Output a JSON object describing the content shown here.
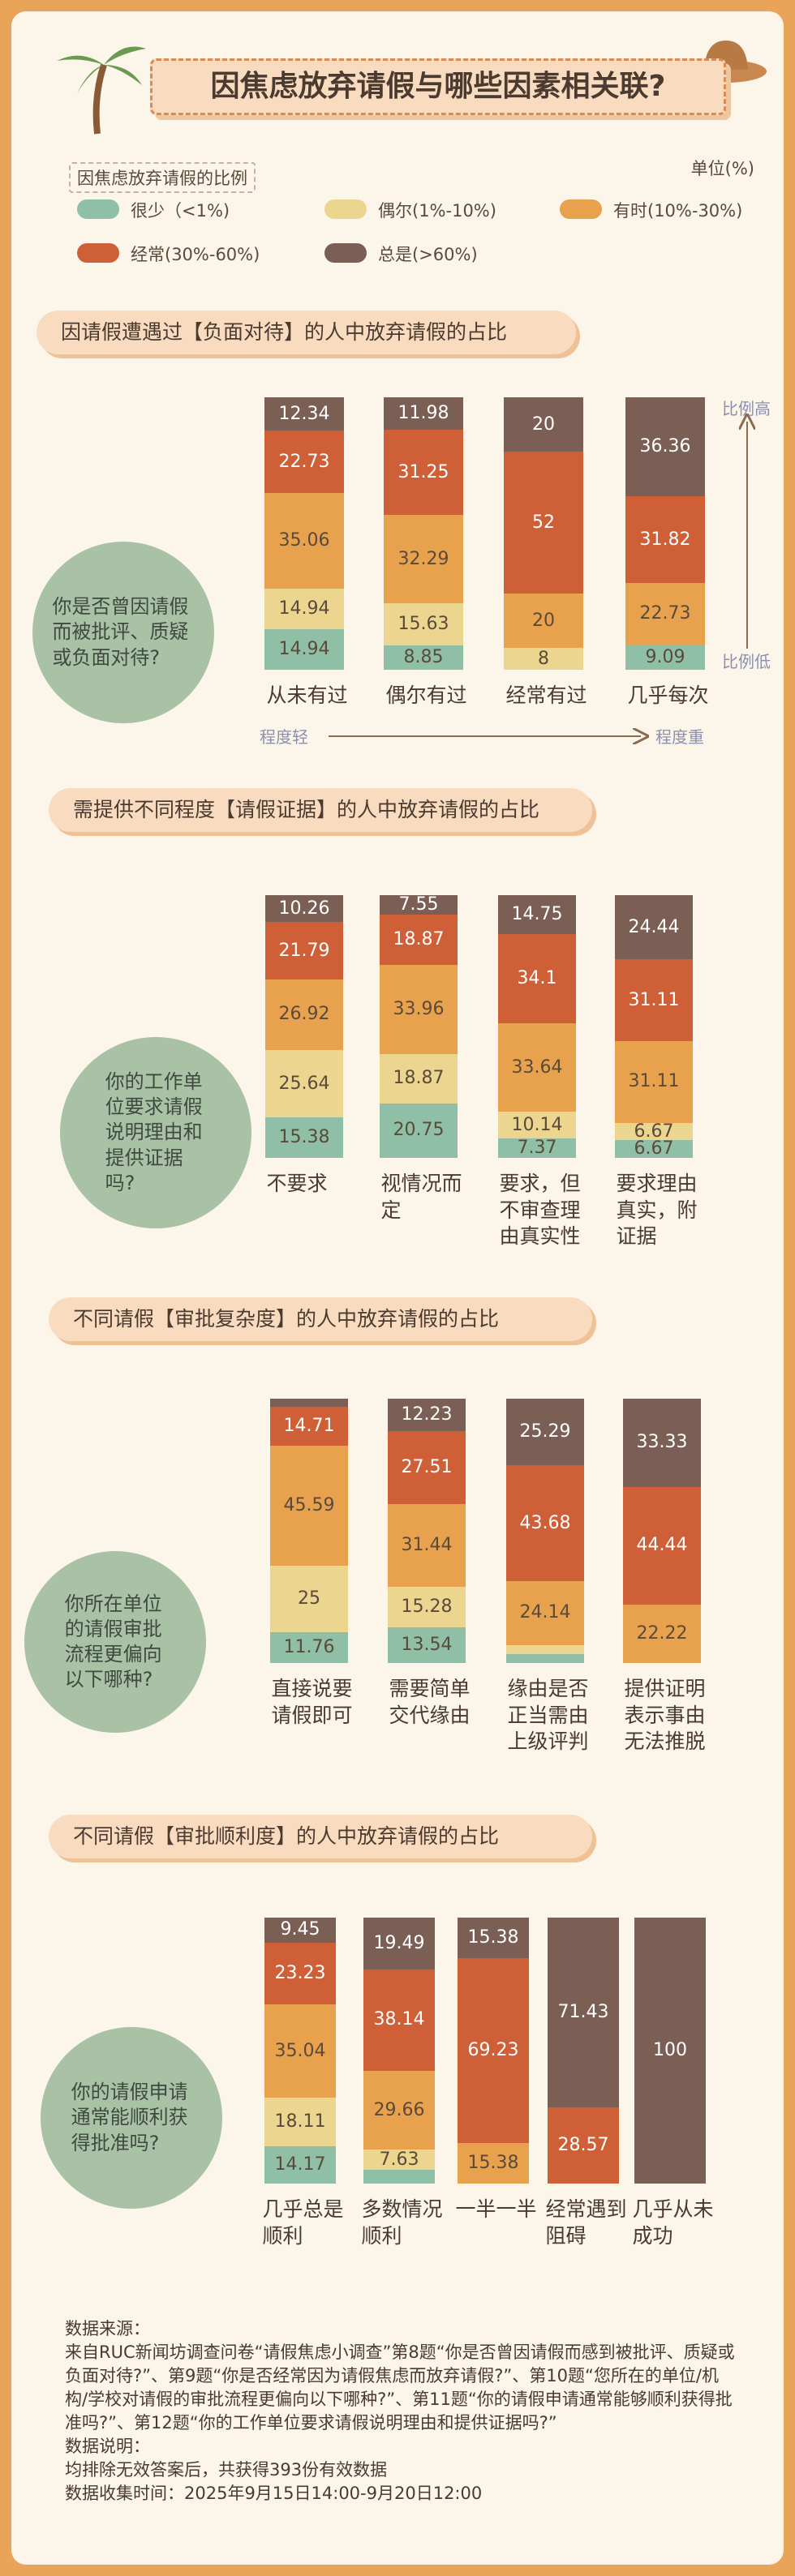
{
  "header": {
    "title": "因焦虑放弃请假与哪些因素相关联?"
  },
  "legend": {
    "title": "因焦虑放弃请假的比例",
    "unit": "单位(%)"
  },
  "chart_data": [
    {
      "type": "bar",
      "stacked": true,
      "title": "因请假遭遇过【负面对待】的人中放弃请假的占比",
      "question": "你是否曾因请假而被批评、质疑或负面对待?",
      "annotations": {
        "y_high": "比例高",
        "y_low": "比例低",
        "x_low": "程度轻",
        "x_high": "程度重"
      },
      "categories": [
        "从未有过",
        "偶尔有过",
        "经常有过",
        "几乎每次"
      ],
      "series": [
        {
          "name": "很少（<1%)",
          "color": "#8fbfa6",
          "values": [
            14.94,
            8.85,
            0,
            9.09
          ]
        },
        {
          "name": "偶尔(1%-10%)",
          "color": "#ecd58f",
          "values": [
            14.94,
            15.63,
            8,
            0
          ]
        },
        {
          "name": "有时(10%-30%)",
          "color": "#e8a24e",
          "values": [
            35.06,
            32.29,
            20,
            22.73
          ]
        },
        {
          "name": "经常(30%-60%)",
          "color": "#cf5f37",
          "values": [
            22.73,
            31.25,
            52,
            31.82
          ]
        },
        {
          "name": "总是(>60%)",
          "color": "#7b5f55",
          "values": [
            12.34,
            11.98,
            20,
            36.36
          ]
        }
      ]
    },
    {
      "type": "bar",
      "stacked": true,
      "title": "需提供不同程度【请假证据】的人中放弃请假的占比",
      "question": "你的工作单位要求请假说明理由和提供证据吗?",
      "categories": [
        "不要求",
        "视情况而定",
        "要求，但不审查理由真实性",
        "要求理由真实，附证据"
      ],
      "series": [
        {
          "name": "很少（<1%)",
          "color": "#8fbfa6",
          "values": [
            15.38,
            20.75,
            7.37,
            6.67
          ]
        },
        {
          "name": "偶尔(1%-10%)",
          "color": "#ecd58f",
          "values": [
            25.64,
            18.87,
            10.14,
            6.67
          ]
        },
        {
          "name": "有时(10%-30%)",
          "color": "#e8a24e",
          "values": [
            26.92,
            33.96,
            33.64,
            31.11
          ]
        },
        {
          "name": "经常(30%-60%)",
          "color": "#cf5f37",
          "values": [
            21.79,
            18.87,
            34.1,
            31.11
          ]
        },
        {
          "name": "总是(>60%)",
          "color": "#7b5f55",
          "values": [
            10.26,
            7.55,
            14.75,
            24.44
          ]
        }
      ]
    },
    {
      "type": "bar",
      "stacked": true,
      "title": "不同请假【审批复杂度】的人中放弃请假的占比",
      "question": "你所在单位的请假审批流程更偏向以下哪种?",
      "categories": [
        "直接说要请假即可",
        "需要简单交代缘由",
        "缘由是否正当需由上级评判",
        "提供证明表示事由无法推脱"
      ],
      "series": [
        {
          "name": "很少（<1%)",
          "color": "#8fbfa6",
          "values": [
            11.76,
            13.54,
            3.44,
            0
          ]
        },
        {
          "name": "偶尔(1%-10%)",
          "color": "#ecd58f",
          "values": [
            25,
            15.28,
            3.45,
            0
          ]
        },
        {
          "name": "有时(10%-30%)",
          "color": "#e8a24e",
          "values": [
            45.59,
            31.44,
            24.14,
            22.22
          ]
        },
        {
          "name": "经常(30%-60%)",
          "color": "#cf5f37",
          "values": [
            14.71,
            27.51,
            43.68,
            44.44
          ]
        },
        {
          "name": "总是(>60%)",
          "color": "#7b5f55",
          "values": [
            2.94,
            12.23,
            25.29,
            33.33
          ]
        }
      ]
    },
    {
      "type": "bar",
      "stacked": true,
      "title": "不同请假【审批顺利度】的人中放弃请假的占比",
      "question": "你的请假申请通常能顺利获得批准吗?",
      "categories": [
        "几乎总是顺利",
        "多数情况顺利",
        "一半一半",
        "经常遇到阻碍",
        "几乎从未成功"
      ],
      "series": [
        {
          "name": "很少（<1%)",
          "color": "#8fbfa6",
          "values": [
            14.17,
            5.08,
            0,
            0,
            0
          ]
        },
        {
          "name": "偶尔(1%-10%)",
          "color": "#ecd58f",
          "values": [
            18.11,
            7.63,
            0,
            0,
            0
          ]
        },
        {
          "name": "有时(10%-30%)",
          "color": "#e8a24e",
          "values": [
            35.04,
            29.66,
            15.38,
            0,
            0
          ]
        },
        {
          "name": "经常(30%-60%)",
          "color": "#cf5f37",
          "values": [
            23.23,
            38.14,
            69.23,
            28.57,
            0
          ]
        },
        {
          "name": "总是(>60%)",
          "color": "#7b5f55",
          "values": [
            9.45,
            19.49,
            15.38,
            71.43,
            100
          ]
        }
      ]
    }
  ],
  "footer": {
    "source_label": "数据来源：",
    "source_text": "来自RUC新闻坊调查问卷“请假焦虑小调查”第8题“你是否曾因请假而感到被批评、质疑或负面对待?”、第9题“你是否经常因为请假焦虑而放弃请假?”、第10题“您所在的单位/机构/学校对请假的审批流程更偏向以下哪种?”、第11题“你的请假申请通常能够顺利获得批准吗?”、第12题“你的工作单位要求请假说明理由和提供证据吗?”",
    "note_label": "数据说明：",
    "note_text": "均排除无效答案后，共获得393份有效数据",
    "time": "数据收集时间：2025年9月15日14:00-9月20日12:00"
  }
}
